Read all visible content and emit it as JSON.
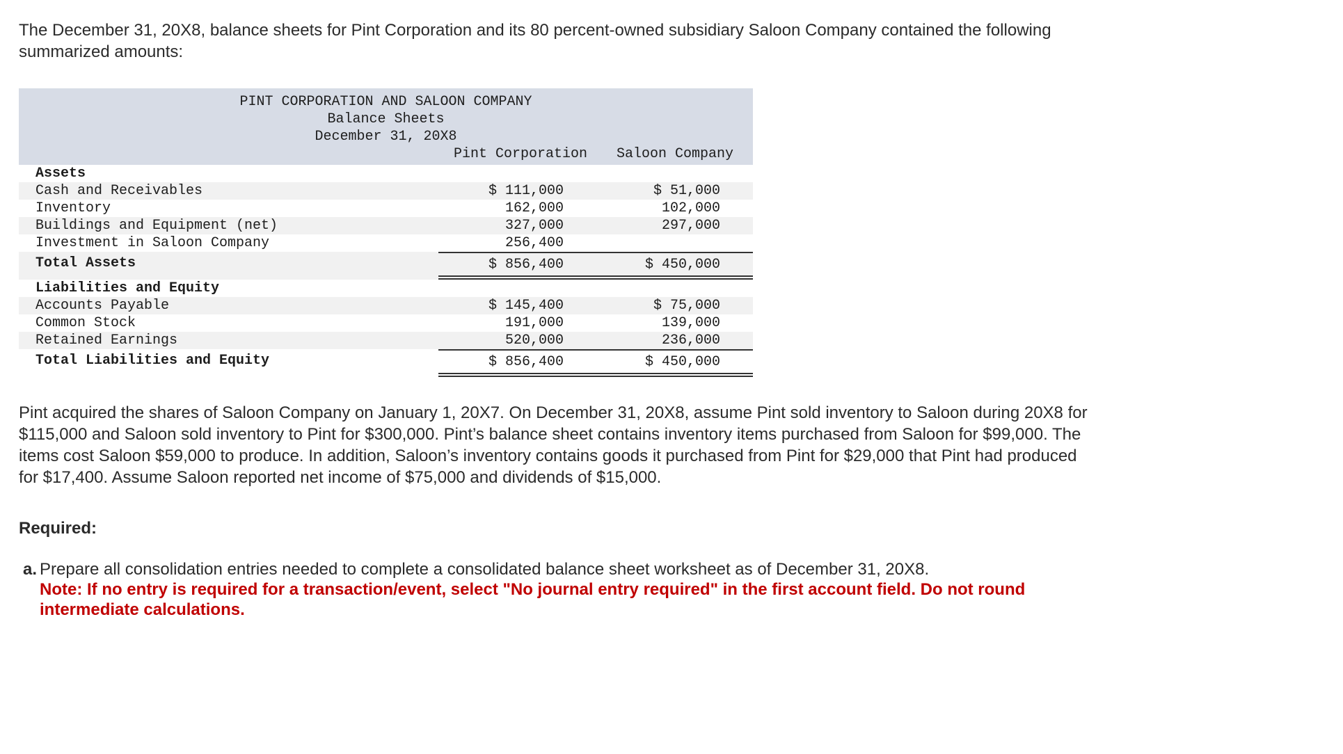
{
  "intro": "The December 31, 20X8, balance sheets for Pint Corporation and its 80 percent-owned subsidiary Saloon Company contained the following summarized amounts:",
  "table": {
    "title_lines": [
      "PINT CORPORATION AND SALOON COMPANY",
      "Balance Sheets",
      "December 31, 20X8"
    ],
    "col_headers": {
      "pint": "Pint Corporation",
      "saloon": "Saloon Company"
    },
    "assets": {
      "section_label": "Assets",
      "rows": [
        {
          "label": "Cash and Receivables",
          "pint": "$ 111,000",
          "saloon": "$ 51,000"
        },
        {
          "label": "Inventory",
          "pint": "162,000",
          "saloon": "102,000"
        },
        {
          "label": "Buildings and Equipment (net)",
          "pint": "327,000",
          "saloon": "297,000"
        },
        {
          "label": "Investment in Saloon Company",
          "pint": "256,400",
          "saloon": ""
        }
      ],
      "total": {
        "label": "Total Assets",
        "pint": "$ 856,400",
        "saloon": "$ 450,000"
      }
    },
    "liabilities": {
      "section_label": "Liabilities and Equity",
      "rows": [
        {
          "label": "Accounts Payable",
          "pint": "$ 145,400",
          "saloon": "$ 75,000"
        },
        {
          "label": "Common Stock",
          "pint": "191,000",
          "saloon": "139,000"
        },
        {
          "label": "Retained Earnings",
          "pint": "520,000",
          "saloon": "236,000"
        }
      ],
      "total": {
        "label": "Total Liabilities and Equity",
        "pint": "$ 856,400",
        "saloon": "$ 450,000"
      }
    }
  },
  "narrative": "Pint acquired the shares of Saloon Company on January 1, 20X7. On December 31, 20X8, assume Pint sold inventory to Saloon during 20X8 for $115,000 and Saloon sold inventory to Pint for $300,000. Pint’s balance sheet contains inventory items purchased from Saloon for $99,000. The items cost Saloon $59,000 to produce. In addition, Saloon’s inventory contains goods it purchased from Pint for $29,000 that Pint had produced for $17,400. Assume Saloon reported net income of $75,000 and dividends of $15,000.",
  "required": {
    "heading": "Required:",
    "item_a_label": "a.",
    "item_a_text": "Prepare all consolidation entries needed to complete a consolidated balance sheet worksheet as of December 31, 20X8.",
    "note_lines": [
      "Note: If no entry is required for a transaction/event, select \"No journal entry required\" in the first account field. Do not round",
      "intermediate calculations."
    ]
  },
  "colors": {
    "table_header_bg": "#d7dce6",
    "row_stripe": "#f1f1f1",
    "note_red": "#c00000"
  }
}
